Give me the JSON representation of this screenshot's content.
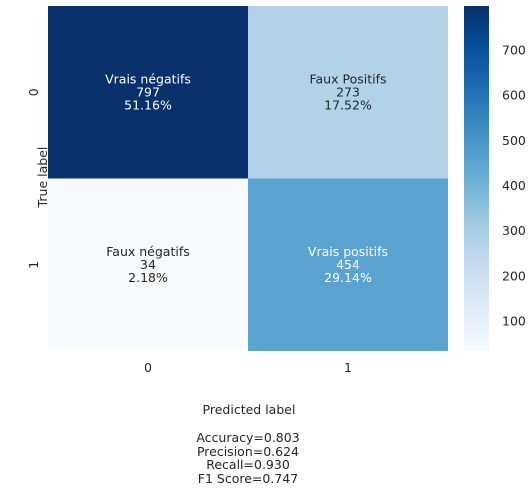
{
  "chart_data": {
    "type": "heatmap",
    "xlabel": "Predicted label",
    "ylabel": "True label",
    "x_ticklabels": [
      "0",
      "1"
    ],
    "y_ticklabels": [
      "0",
      "1"
    ],
    "colormap": "Blues",
    "color_range": [
      34,
      797
    ],
    "colorbar_ticks": [
      100,
      200,
      300,
      400,
      500,
      600,
      700
    ],
    "cells": [
      {
        "row": 0,
        "col": 0,
        "label": "Vrais négatifs",
        "count": "797",
        "percent": "51.16%",
        "value": 797
      },
      {
        "row": 0,
        "col": 1,
        "label": "Faux Positifs",
        "count": "273",
        "percent": "17.52%",
        "value": 273
      },
      {
        "row": 1,
        "col": 0,
        "label": "Faux négatifs",
        "count": "34",
        "percent": "2.18%",
        "value": 34
      },
      {
        "row": 1,
        "col": 1,
        "label": "Vrais positifs",
        "count": "454",
        "percent": "29.14%",
        "value": 454
      }
    ]
  },
  "metrics": {
    "accuracy": "Accuracy=0.803",
    "precision": "Precision=0.624",
    "recall": "Recall=0.930",
    "f1": "F1 Score=0.747"
  }
}
